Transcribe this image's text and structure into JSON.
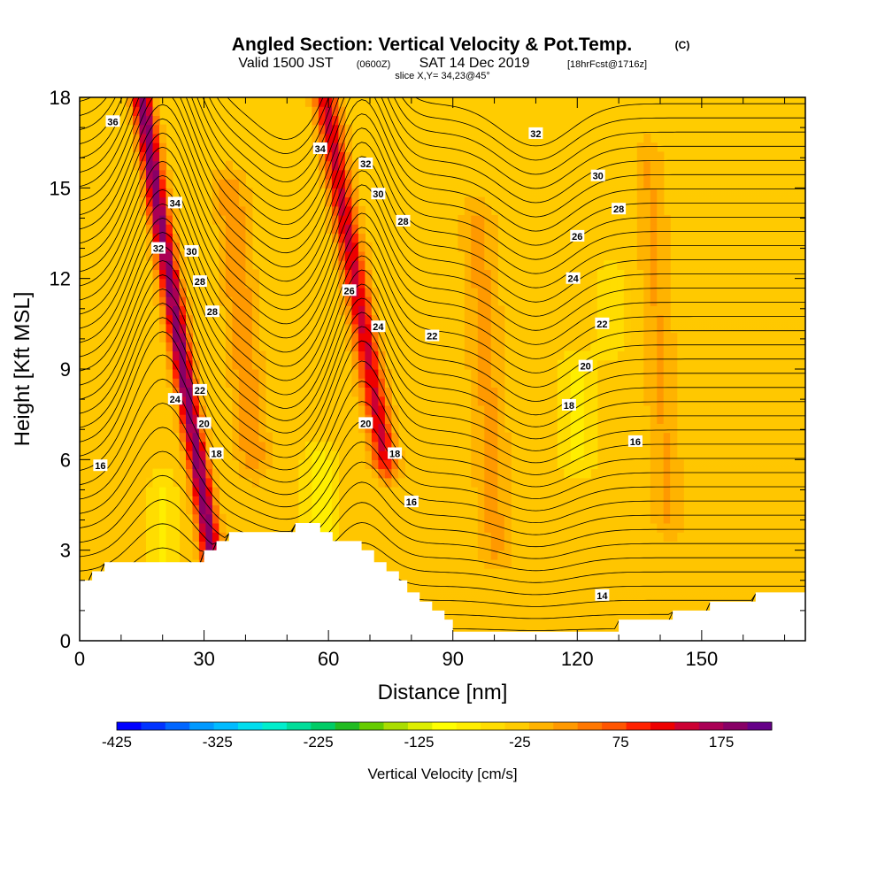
{
  "header": {
    "title": "Angled Section: Vertical Velocity & Pot.Temp.",
    "title_units": "(C)",
    "valid_a": "Valid 1500 JST",
    "valid_b": "(0600Z)",
    "valid_c": "SAT 14 Dec 2019",
    "valid_d": "[18hrFcst@1716z]",
    "slice": "slice X,Y= 34,23@45°"
  },
  "chart_data": {
    "type": "heatmap",
    "xlabel": "Distance [nm]",
    "ylabel": "Height [Kft MSL]",
    "xlim": [
      0,
      175
    ],
    "ylim": [
      0,
      18
    ],
    "xticks": [
      0,
      30,
      60,
      90,
      120,
      150
    ],
    "yticks": [
      0,
      3,
      6,
      9,
      12,
      15,
      18
    ],
    "colorbar": {
      "label": "Vertical Velocity [cm/s]",
      "min": -425,
      "max": 225,
      "tick_values": [
        -425,
        -325,
        -225,
        -125,
        -25,
        75,
        175
      ],
      "tick_labels": [
        "-425",
        "-325",
        "-225",
        "-125",
        "-25",
        "75",
        "175"
      ],
      "colors": [
        "#0000ff",
        "#0033ff",
        "#0066ff",
        "#0099ff",
        "#00bbff",
        "#00ddee",
        "#00eecc",
        "#00dd99",
        "#00cc66",
        "#22bb22",
        "#66cc00",
        "#aadd00",
        "#ddee00",
        "#ffff00",
        "#ffee00",
        "#ffdd00",
        "#ffcc00",
        "#ffb300",
        "#ff9900",
        "#ff7700",
        "#ff5500",
        "#ff2200",
        "#ee0000",
        "#cc0033",
        "#aa0055",
        "#880066",
        "#660088"
      ]
    },
    "terrain_kft": [
      [
        0,
        2.0
      ],
      [
        3,
        2.0
      ],
      [
        3,
        2.3
      ],
      [
        6,
        2.3
      ],
      [
        6,
        2.6
      ],
      [
        30,
        2.6
      ],
      [
        30,
        3.0
      ],
      [
        33,
        3.0
      ],
      [
        33,
        3.3
      ],
      [
        36,
        3.3
      ],
      [
        36,
        3.6
      ],
      [
        52,
        3.6
      ],
      [
        52,
        3.9
      ],
      [
        58,
        3.9
      ],
      [
        58,
        3.6
      ],
      [
        61,
        3.6
      ],
      [
        61,
        3.3
      ],
      [
        68,
        3.3
      ],
      [
        68,
        3.0
      ],
      [
        71,
        3.0
      ],
      [
        71,
        2.6
      ],
      [
        74,
        2.6
      ],
      [
        74,
        2.3
      ],
      [
        77,
        2.3
      ],
      [
        77,
        2.0
      ],
      [
        79,
        2.0
      ],
      [
        79,
        1.6
      ],
      [
        82,
        1.6
      ],
      [
        82,
        1.3
      ],
      [
        85,
        1.3
      ],
      [
        85,
        1.0
      ],
      [
        88,
        1.0
      ],
      [
        88,
        0.7
      ],
      [
        90,
        0.7
      ],
      [
        90,
        0.3
      ],
      [
        130,
        0.3
      ],
      [
        130,
        0.7
      ],
      [
        143,
        0.7
      ],
      [
        143,
        1.0
      ],
      [
        152,
        1.0
      ],
      [
        152,
        1.3
      ],
      [
        163,
        1.3
      ],
      [
        163,
        1.6
      ],
      [
        175,
        1.6
      ]
    ],
    "velocity_features": [
      {
        "x": 25,
        "y0": 0,
        "y1": 18,
        "width": 2.4,
        "lean": -0.28,
        "peak": 220
      },
      {
        "x": 70,
        "y0": 6,
        "y1": 18,
        "width": 2.8,
        "lean": -0.3,
        "peak": 160
      },
      {
        "x": 40,
        "y0": 6,
        "y1": 15,
        "width": 3.5,
        "lean": -0.15,
        "peak": 55
      },
      {
        "x": 98,
        "y0": 3,
        "y1": 14,
        "width": 4.0,
        "lean": -0.1,
        "peak": 40
      },
      {
        "x": 140,
        "y0": 4,
        "y1": 16,
        "width": 3.5,
        "lean": -0.1,
        "peak": 35
      },
      {
        "x": 58,
        "y0": 2,
        "y1": 6,
        "width": 4.0,
        "lean": 0,
        "peak": -55
      },
      {
        "x": 20,
        "y0": 2,
        "y1": 5,
        "width": 3.0,
        "lean": 0,
        "peak": -50
      },
      {
        "x": 120,
        "y0": 6,
        "y1": 9,
        "width": 5.0,
        "lean": 0,
        "peak": -40
      },
      {
        "x": 128,
        "y0": 10,
        "y1": 12,
        "width": 4.0,
        "lean": 0,
        "peak": -35
      }
    ],
    "isentropes_c": [
      14,
      16,
      18,
      20,
      22,
      24,
      26,
      28,
      30,
      32,
      34,
      36
    ],
    "contour_labels": [
      {
        "x": 8,
        "y": 17.2,
        "text": "36"
      },
      {
        "x": 23,
        "y": 14.5,
        "text": "34"
      },
      {
        "x": 19,
        "y": 13.0,
        "text": "32"
      },
      {
        "x": 27,
        "y": 12.9,
        "text": "30"
      },
      {
        "x": 29,
        "y": 11.9,
        "text": "28"
      },
      {
        "x": 32,
        "y": 10.9,
        "text": "28"
      },
      {
        "x": 23,
        "y": 8.0,
        "text": "24"
      },
      {
        "x": 29,
        "y": 8.3,
        "text": "22"
      },
      {
        "x": 30,
        "y": 7.2,
        "text": "20"
      },
      {
        "x": 33,
        "y": 6.2,
        "text": "18"
      },
      {
        "x": 5,
        "y": 5.8,
        "text": "16"
      },
      {
        "x": 58,
        "y": 16.3,
        "text": "34"
      },
      {
        "x": 69,
        "y": 15.8,
        "text": "32"
      },
      {
        "x": 72,
        "y": 14.8,
        "text": "30"
      },
      {
        "x": 78,
        "y": 13.9,
        "text": "28"
      },
      {
        "x": 65,
        "y": 11.6,
        "text": "26"
      },
      {
        "x": 72,
        "y": 10.4,
        "text": "24"
      },
      {
        "x": 85,
        "y": 10.1,
        "text": "22"
      },
      {
        "x": 69,
        "y": 7.2,
        "text": "20"
      },
      {
        "x": 76,
        "y": 6.2,
        "text": "18"
      },
      {
        "x": 80,
        "y": 4.6,
        "text": "16"
      },
      {
        "x": 110,
        "y": 16.8,
        "text": "32"
      },
      {
        "x": 125,
        "y": 15.4,
        "text": "30"
      },
      {
        "x": 130,
        "y": 14.3,
        "text": "28"
      },
      {
        "x": 120,
        "y": 13.4,
        "text": "26"
      },
      {
        "x": 119,
        "y": 12.0,
        "text": "24"
      },
      {
        "x": 126,
        "y": 10.5,
        "text": "22"
      },
      {
        "x": 122,
        "y": 9.1,
        "text": "20"
      },
      {
        "x": 118,
        "y": 7.8,
        "text": "18"
      },
      {
        "x": 134,
        "y": 6.6,
        "text": "16"
      },
      {
        "x": 126,
        "y": 1.5,
        "text": "14"
      }
    ]
  }
}
